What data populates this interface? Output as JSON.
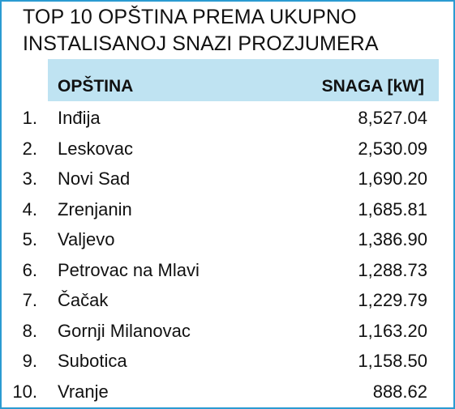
{
  "title": {
    "line1": "TOP 10 OPŠTINA PREMA UKUPNO",
    "line2": "INSTALISANOJ SNAZI PROZJUMERA"
  },
  "colors": {
    "border": "#2b9bd1",
    "header_bg": "#bfe3f2",
    "text": "#111111"
  },
  "chart_data": {
    "type": "table",
    "title": "TOP 10 OPŠTINA PREMA UKUPNO INSTALISANOJ SNAZI PROZJUMERA",
    "columns": [
      "OPŠTINA",
      "SNAGA [kW]"
    ],
    "rows": [
      {
        "rank": "1.",
        "name": "Inđija",
        "value": "8,527.04"
      },
      {
        "rank": "2.",
        "name": "Leskovac",
        "value": "2,530.09"
      },
      {
        "rank": "3.",
        "name": "Novi Sad",
        "value": "1,690.20"
      },
      {
        "rank": "4.",
        "name": "Zrenjanin",
        "value": "1,685.81"
      },
      {
        "rank": "5.",
        "name": "Valjevo",
        "value": "1,386.90"
      },
      {
        "rank": "6.",
        "name": "Petrovac na Mlavi",
        "value": "1,288.73"
      },
      {
        "rank": "7.",
        "name": "Čačak",
        "value": "1,229.79"
      },
      {
        "rank": "8.",
        "name": "Gornji Milanovac",
        "value": "1,163.20"
      },
      {
        "rank": "9.",
        "name": "Subotica",
        "value": "1,158.50"
      },
      {
        "rank": "10.",
        "name": "Vranje",
        "value": "888.62"
      }
    ]
  }
}
